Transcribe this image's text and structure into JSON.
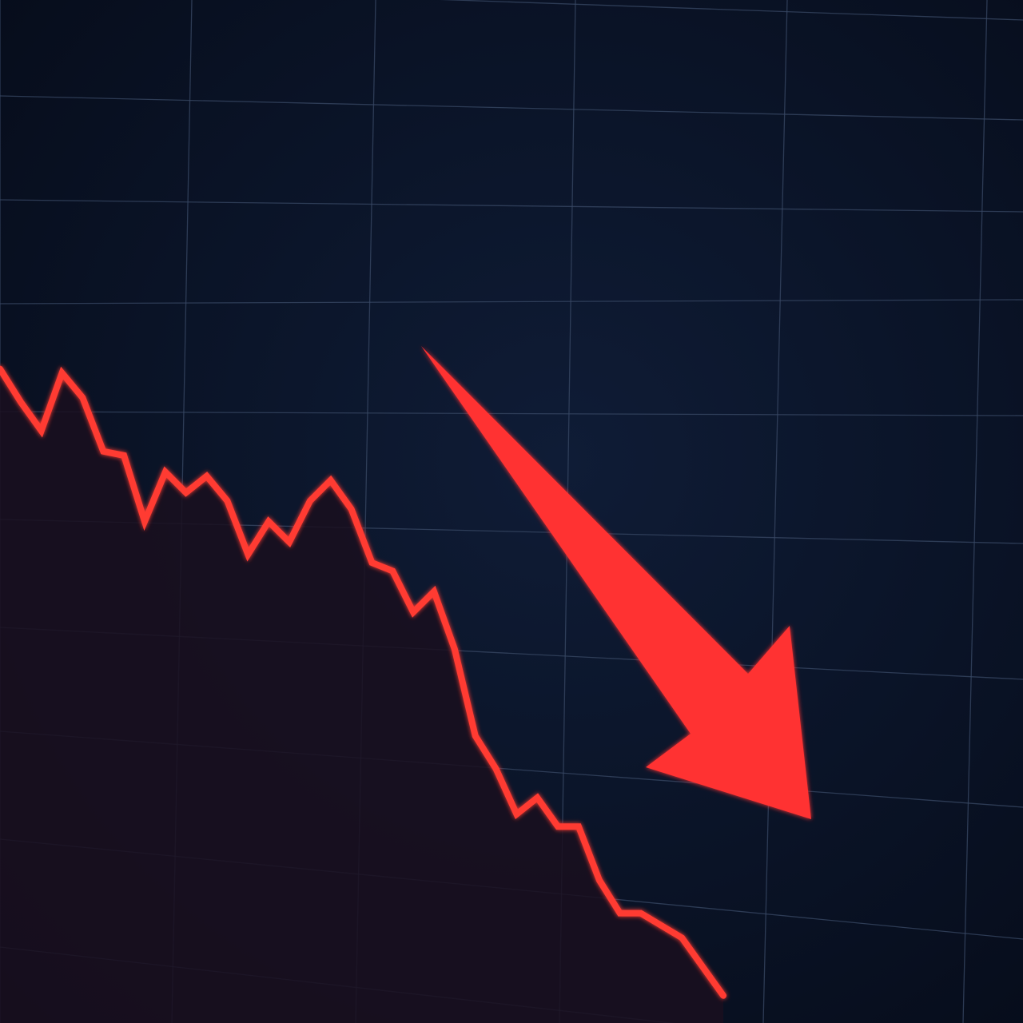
{
  "chart_data": {
    "type": "line",
    "title": "",
    "xlabel": "",
    "ylabel": "",
    "grid": true,
    "x": [
      0,
      1,
      2,
      3,
      4,
      5,
      6,
      7,
      8,
      9,
      10,
      11,
      12,
      13,
      14,
      15,
      16,
      17,
      18,
      19,
      20,
      21,
      22,
      23,
      24,
      25,
      26,
      27,
      28,
      29,
      30,
      31,
      32,
      33,
      34,
      35
    ],
    "series": [
      {
        "values": [
          100,
          92,
          85,
          99,
          93,
          80,
          79,
          63,
          75,
          70,
          74,
          68,
          55,
          63,
          58,
          68,
          73,
          66,
          53,
          51,
          41,
          46,
          32,
          11,
          3,
          -8,
          -4,
          -11,
          -11,
          -24,
          -32,
          -32,
          -35,
          -38,
          -45,
          -52
        ]
      }
    ],
    "ylim": [
      -60,
      110
    ],
    "annotations": [
      {
        "type": "arrow",
        "direction": "down-right"
      }
    ],
    "colors": {
      "background": "#0a1326",
      "grid": "#3a4a66",
      "line": "#ff3b30",
      "area_fill": "#1a0f1f",
      "arrow": "#ff3030"
    }
  }
}
